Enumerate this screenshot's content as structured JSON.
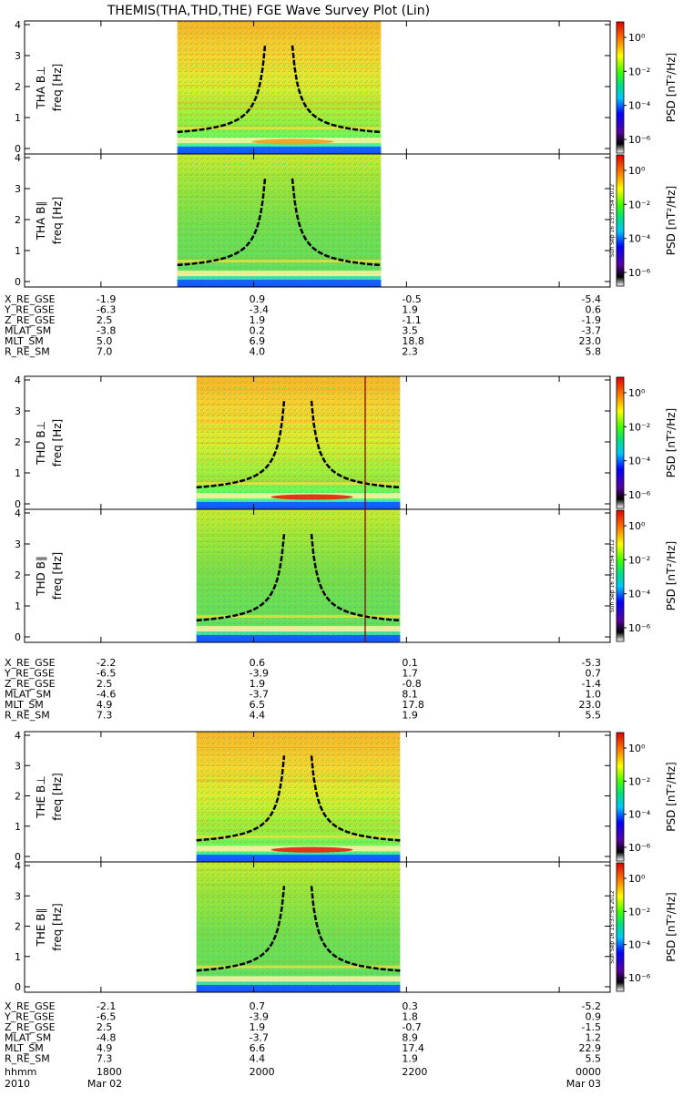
{
  "title": "THEMIS(THA,THD,THE) FGE Wave Survey Plot (Lin)",
  "colorbar": {
    "unit_label": "PSD [nT²/Hz]",
    "ticks": [
      "10⁰",
      "10⁻²",
      "10⁻⁴",
      "10⁻⁶"
    ]
  },
  "stamp": "Sun Sep 16 15:37:54 2012",
  "chart_data": {
    "type": "heatmap",
    "xaxis": {
      "ticks": [
        "1800",
        "2000",
        "2200",
        "0000"
      ],
      "dates": [
        "Mar 02",
        "Mar 03"
      ],
      "year": "2010",
      "row_label": "hhmm"
    },
    "yaxis": {
      "ticks": [
        "0",
        "1",
        "2",
        "3",
        "4"
      ],
      "range": [
        0,
        4
      ],
      "units": "Hz"
    },
    "colorscale": {
      "scale": "log",
      "range": [
        "1e-6",
        "1e1"
      ],
      "unit": "nT^2/Hz"
    },
    "probes": [
      {
        "name": "THA",
        "panels": [
          {
            "label": "THA B⊥",
            "ylabel": "freq [Hz]"
          },
          {
            "label": "THA B∥",
            "ylabel": "freq [Hz]"
          }
        ],
        "data_interval": [
          "1900",
          "2140"
        ],
        "ephemeris": [
          {
            "label": "X_RE_GSE",
            "values": [
              "-1.9",
              "0.9",
              "-0.5",
              "-5.4"
            ]
          },
          {
            "label": "Y_RE_GSE",
            "values": [
              "-6.3",
              "-3.4",
              "1.9",
              "0.6"
            ]
          },
          {
            "label": "Z_RE_GSE",
            "values": [
              "2.5",
              "1.9",
              "-1.1",
              "-1.9"
            ]
          },
          {
            "label": "MLAT_SM",
            "values": [
              "-3.8",
              "0.2",
              "3.5",
              "-3.7"
            ]
          },
          {
            "label": "MLT_SM",
            "values": [
              "5.0",
              "6.9",
              "18.8",
              "23.0"
            ]
          },
          {
            "label": "R_RE_SM",
            "values": [
              "7.0",
              "4.0",
              "2.3",
              "5.8"
            ]
          }
        ]
      },
      {
        "name": "THD",
        "panels": [
          {
            "label": "THD B⊥",
            "ylabel": "freq [Hz]"
          },
          {
            "label": "THD B∥",
            "ylabel": "freq [Hz]"
          }
        ],
        "data_interval": [
          "1915",
          "2155"
        ],
        "ephemeris": [
          {
            "label": "X_RE_GSE",
            "values": [
              "-2.2",
              "0.6",
              "0.1",
              "-5.3"
            ]
          },
          {
            "label": "Y_RE_GSE",
            "values": [
              "-6.5",
              "-3.9",
              "1.7",
              "0.7"
            ]
          },
          {
            "label": "Z_RE_GSE",
            "values": [
              "2.5",
              "1.9",
              "-0.8",
              "-1.4"
            ]
          },
          {
            "label": "MLAT_SM",
            "values": [
              "-4.6",
              "-3.7",
              "8.1",
              "1.0"
            ]
          },
          {
            "label": "MLT_SM",
            "values": [
              "4.9",
              "6.5",
              "17.8",
              "23.0"
            ]
          },
          {
            "label": "R_RE_SM",
            "values": [
              "7.3",
              "4.4",
              "1.9",
              "5.5"
            ]
          }
        ]
      },
      {
        "name": "THE",
        "panels": [
          {
            "label": "THE B⊥",
            "ylabel": "freq [Hz]"
          },
          {
            "label": "THE B∥",
            "ylabel": "freq [Hz]"
          }
        ],
        "data_interval": [
          "1915",
          "2155"
        ],
        "ephemeris": [
          {
            "label": "X_RE_GSE",
            "values": [
              "-2.1",
              "0.7",
              "0.3",
              "-5.2"
            ]
          },
          {
            "label": "Y_RE_GSE",
            "values": [
              "-6.5",
              "-3.9",
              "1.8",
              "0.9"
            ]
          },
          {
            "label": "Z_RE_GSE",
            "values": [
              "2.5",
              "1.9",
              "-0.7",
              "-1.5"
            ]
          },
          {
            "label": "MLAT_SM",
            "values": [
              "-4.8",
              "-3.7",
              "8.9",
              "1.2"
            ]
          },
          {
            "label": "MLT_SM",
            "values": [
              "4.9",
              "6.6",
              "17.4",
              "22.9"
            ]
          },
          {
            "label": "R_RE_SM",
            "values": [
              "7.3",
              "4.4",
              "1.9",
              "5.5"
            ]
          }
        ]
      }
    ]
  }
}
